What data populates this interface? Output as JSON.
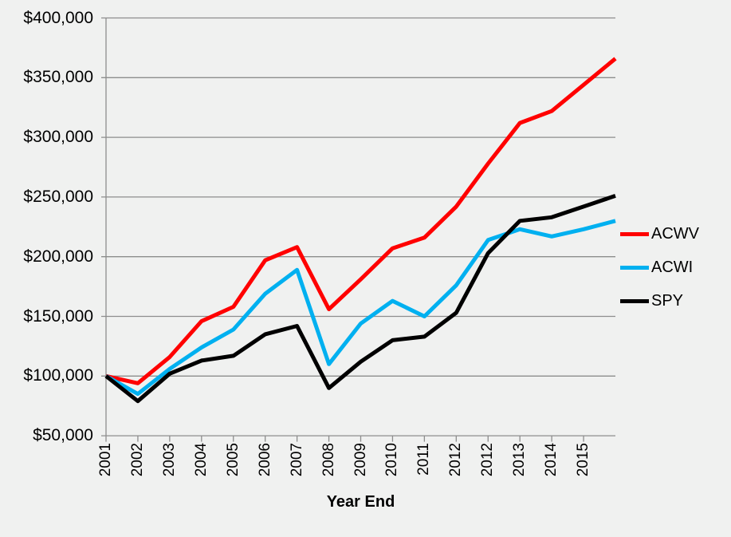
{
  "chart_data": {
    "type": "line",
    "title": "",
    "xlabel": "Year End",
    "ylabel": "",
    "grid": true,
    "legend_position": "right",
    "x_labels": [
      "2001",
      "2002",
      "2003",
      "2004",
      "2005",
      "2006",
      "2007",
      "2008",
      "2009",
      "2010",
      "2011",
      "2012",
      "2012",
      "2013",
      "2014",
      "2015"
    ],
    "x_labels_note": "17th data point at right plot edge has no tick or label",
    "y_ticks": [
      {
        "label": "$400,000",
        "value": 400000
      },
      {
        "label": "$350,000",
        "value": 350000
      },
      {
        "label": "$300,000",
        "value": 300000
      },
      {
        "label": "$250,000",
        "value": 250000
      },
      {
        "label": "$200,000",
        "value": 200000
      },
      {
        "label": "$150,000",
        "value": 150000
      },
      {
        "label": "$100,000",
        "value": 100000
      },
      {
        "label": "$50,000",
        "value": 50000
      }
    ],
    "ylim": [
      50000,
      400000
    ],
    "series": [
      {
        "name": "ACWV",
        "color": "#FF0000",
        "values": [
          100000,
          94000,
          116000,
          146000,
          158000,
          197000,
          208000,
          156000,
          181000,
          207000,
          216000,
          242000,
          278000,
          312000,
          322000,
          344000,
          366000
        ]
      },
      {
        "name": "ACWI",
        "color": "#00B0F0",
        "values": [
          100000,
          85000,
          106000,
          124000,
          139000,
          169000,
          189000,
          110000,
          144000,
          163000,
          150000,
          176000,
          214000,
          223000,
          217000,
          223000,
          230000
        ]
      },
      {
        "name": "SPY",
        "color": "#000000",
        "values": [
          100000,
          79000,
          102000,
          113000,
          117000,
          135000,
          142000,
          90000,
          112000,
          130000,
          133000,
          153000,
          203000,
          230000,
          233000,
          242000,
          251000
        ]
      }
    ]
  },
  "colors": {
    "background": "#F0F1F0",
    "gridline": "#8D8D8D",
    "axis": "#8D8D8D",
    "text": "#000000"
  }
}
